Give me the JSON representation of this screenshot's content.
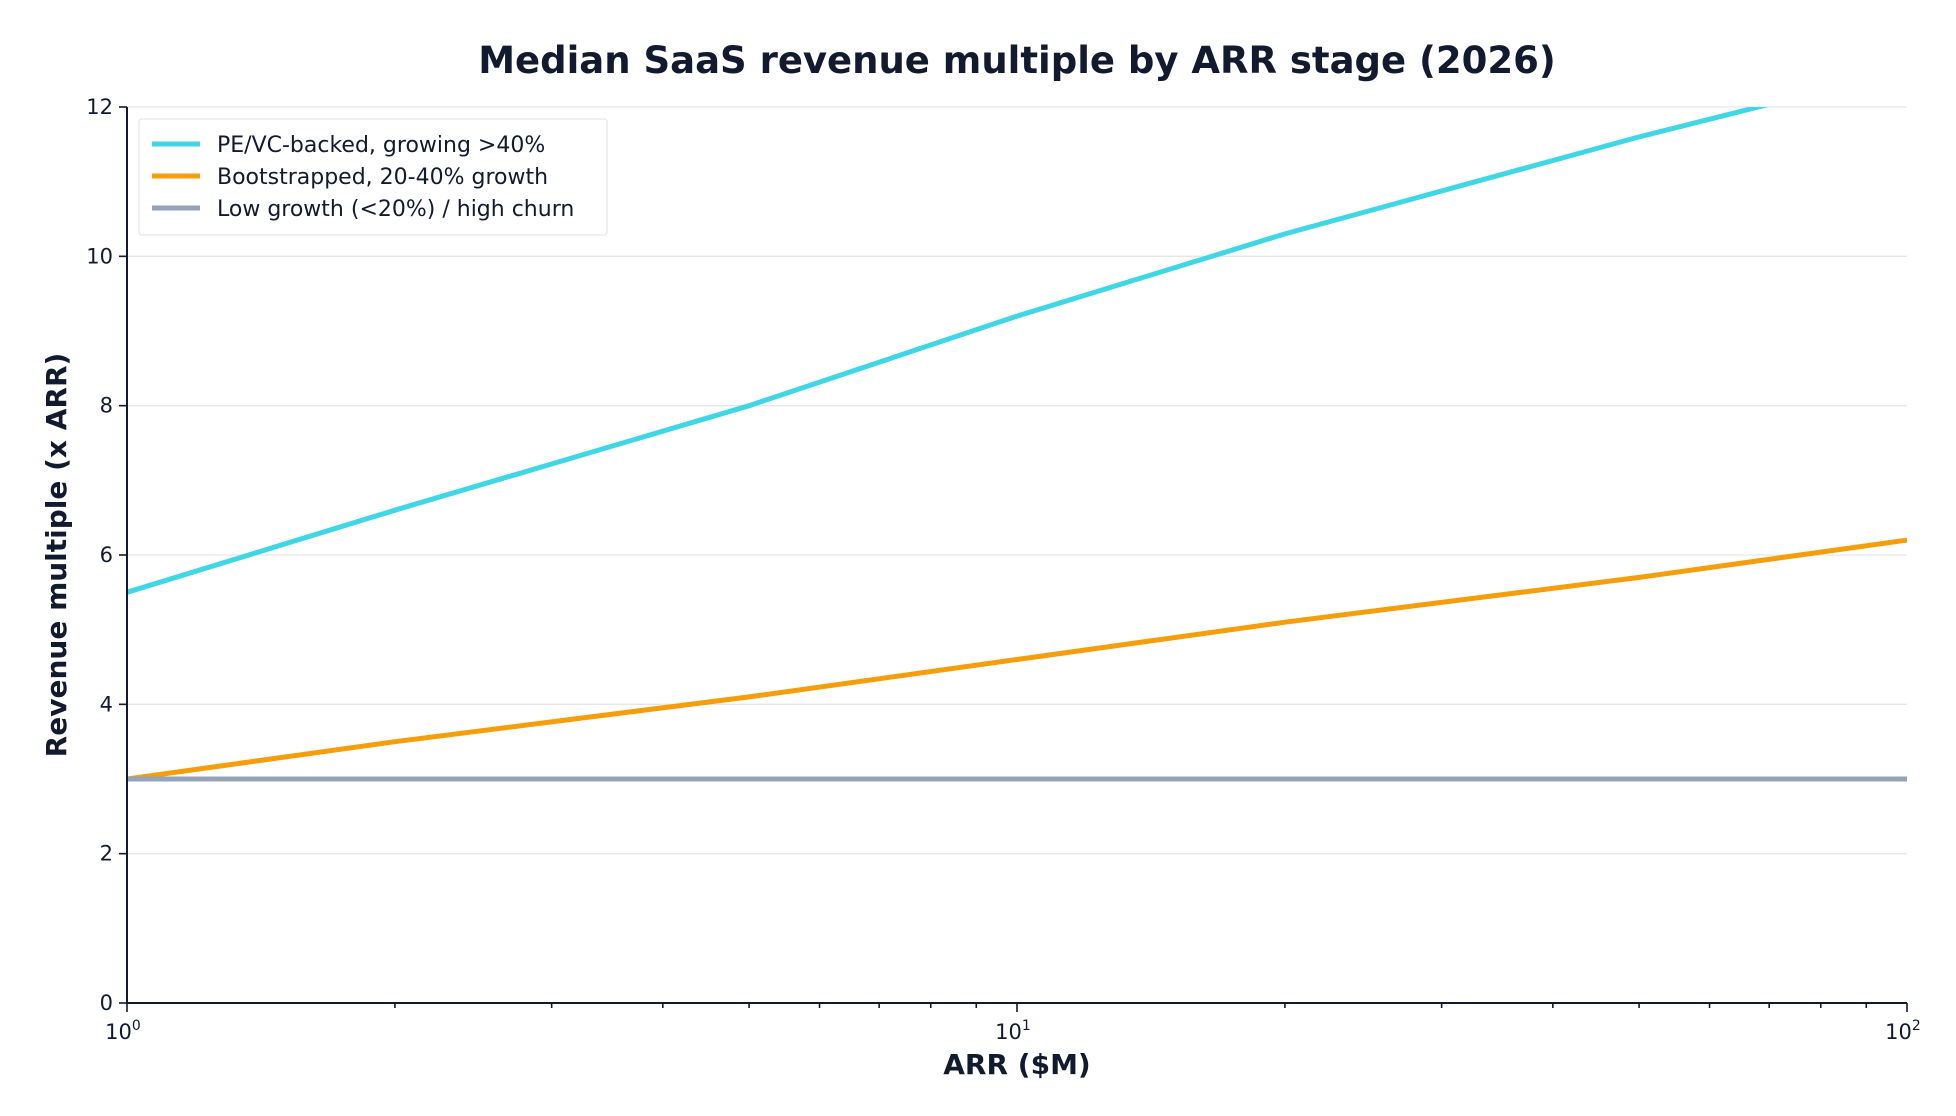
{
  "chart_data": {
    "type": "line",
    "title": "Median SaaS revenue multiple by ARR stage (2026)",
    "xlabel": "ARR ($M)",
    "ylabel": "Revenue multiple (x ARR)",
    "xscale": "log",
    "xlim": [
      1,
      100
    ],
    "ylim": [
      0,
      12
    ],
    "x_ticks": [
      {
        "base": "10",
        "exp": "0"
      },
      {
        "base": "10",
        "exp": "1"
      },
      {
        "base": "10",
        "exp": "2"
      }
    ],
    "y_ticks": [
      "0",
      "2",
      "4",
      "6",
      "8",
      "10",
      "12"
    ],
    "grid": "horizontal",
    "legend_position": "top-left",
    "x": [
      1,
      2,
      5,
      10,
      20,
      50,
      100
    ],
    "series": [
      {
        "name": "PE/VC-backed, growing >40%",
        "color": "#3fd6e6",
        "values": [
          5.5,
          6.6,
          8.0,
          9.2,
          10.3,
          11.6,
          12.5
        ]
      },
      {
        "name": "Bootstrapped, 20-40% growth",
        "color": "#f59e0b",
        "values": [
          3.0,
          3.5,
          4.1,
          4.6,
          5.1,
          5.7,
          6.2
        ]
      },
      {
        "name": "Low growth (<20%) / high churn",
        "color": "#94a3b8",
        "values": [
          3.0,
          3.0,
          3.0,
          3.0,
          3.0,
          3.0,
          3.0
        ]
      }
    ]
  }
}
